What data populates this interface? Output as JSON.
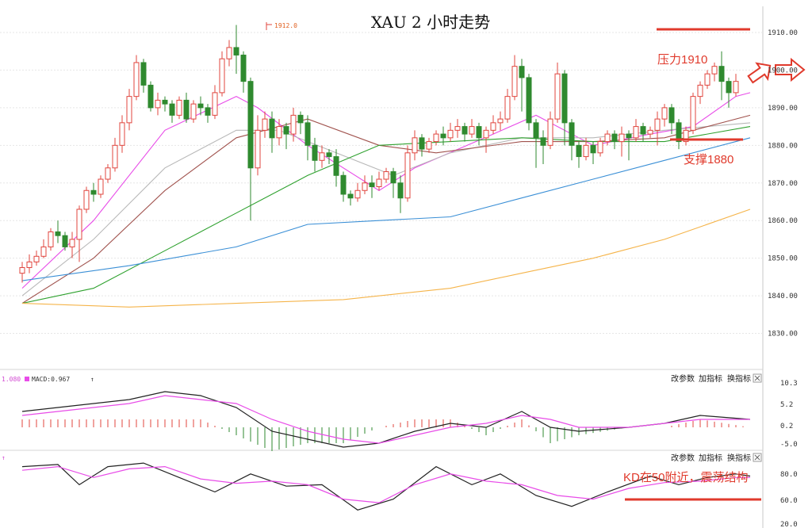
{
  "title": "XAU 2 小时走势",
  "peak_label": "1912.0",
  "annotations": {
    "resistance": "压力1910",
    "support": "支撑1880",
    "kd_note": "KD在50附近，震荡结构"
  },
  "macd_panel": {
    "label_left": "1.080",
    "label_macd": "MACD:0.967",
    "buttons": [
      "改参数",
      "加指标",
      "换指标"
    ],
    "ticks": [
      "10.3",
      "5.2",
      "0.2",
      "-5.0"
    ]
  },
  "kd_panel": {
    "buttons": [
      "改参数",
      "加指标",
      "换指标"
    ],
    "ticks": [
      "80.0",
      "60.0",
      "20.0"
    ]
  },
  "colors": {
    "up": "#e0453e",
    "down": "#2f8a2f",
    "ma5": "#222222",
    "ma10": "#e84ce8",
    "ma20": "#b8b8b8",
    "ma30": "#a0524d",
    "ma60": "#2ea12e",
    "ma120": "#3a8fd6",
    "ma250": "#f5b44a",
    "annotation": "#e03a2c"
  },
  "chart_data": {
    "type": "candlestick",
    "timeframe": "2H",
    "symbol": "XAU",
    "y_ticks": [
      1910,
      1900,
      1890,
      1880,
      1870,
      1860,
      1850,
      1840,
      1830
    ],
    "ylim": [
      1820,
      1914
    ],
    "resistance_level": 1910,
    "support_level": 1880,
    "candles": [
      [
        1846,
        1847.5,
        1843.5,
        1849
      ],
      [
        1847.5,
        1849,
        1846,
        1851
      ],
      [
        1849,
        1850.5,
        1848,
        1852
      ],
      [
        1850.5,
        1853,
        1850,
        1855
      ],
      [
        1853,
        1857,
        1852,
        1858
      ],
      [
        1857,
        1856,
        1854,
        1860
      ],
      [
        1856,
        1853,
        1852,
        1857
      ],
      [
        1853,
        1855,
        1850,
        1857
      ],
      [
        1855,
        1863,
        1849,
        1864
      ],
      [
        1863,
        1868,
        1862,
        1869
      ],
      [
        1868,
        1867,
        1865,
        1870
      ],
      [
        1867,
        1871,
        1866,
        1872
      ],
      [
        1871,
        1874,
        1870,
        1875
      ],
      [
        1874,
        1880,
        1873,
        1882
      ],
      [
        1880,
        1886,
        1878,
        1888
      ],
      [
        1886,
        1893,
        1884,
        1895
      ],
      [
        1893,
        1902,
        1892,
        1904
      ],
      [
        1902,
        1896,
        1894,
        1903
      ],
      [
        1896,
        1890,
        1889,
        1897
      ],
      [
        1890,
        1892,
        1888,
        1894
      ],
      [
        1892,
        1891,
        1889,
        1893
      ],
      [
        1891,
        1888,
        1886,
        1892
      ],
      [
        1888,
        1892,
        1887,
        1893
      ],
      [
        1892,
        1887,
        1886,
        1894
      ],
      [
        1887,
        1891,
        1886,
        1892
      ],
      [
        1891,
        1890,
        1888,
        1893
      ],
      [
        1890,
        1888,
        1886,
        1891
      ],
      [
        1888,
        1894,
        1887,
        1896
      ],
      [
        1894,
        1903,
        1893,
        1905
      ],
      [
        1903,
        1906,
        1901,
        1908
      ],
      [
        1906,
        1904,
        1899,
        1912
      ],
      [
        1904,
        1897,
        1894,
        1905
      ],
      [
        1897,
        1874,
        1860,
        1898
      ],
      [
        1874,
        1884,
        1872,
        1888
      ],
      [
        1884,
        1887,
        1882,
        1889
      ],
      [
        1887,
        1882,
        1878,
        1889
      ],
      [
        1882,
        1885,
        1880,
        1887
      ],
      [
        1885,
        1883,
        1879,
        1886
      ],
      [
        1883,
        1888,
        1881,
        1890
      ],
      [
        1888,
        1886,
        1883,
        1889
      ],
      [
        1886,
        1880,
        1876,
        1888
      ],
      [
        1880,
        1876,
        1873,
        1882
      ],
      [
        1876,
        1878,
        1874,
        1880
      ],
      [
        1878,
        1877,
        1875,
        1879
      ],
      [
        1877,
        1872,
        1869,
        1879
      ],
      [
        1872,
        1867,
        1865,
        1873
      ],
      [
        1867,
        1866,
        1864,
        1868
      ],
      [
        1866,
        1868,
        1865,
        1870
      ],
      [
        1868,
        1870,
        1867,
        1872
      ],
      [
        1870,
        1869,
        1866,
        1872
      ],
      [
        1869,
        1871,
        1868,
        1873
      ],
      [
        1871,
        1873,
        1870,
        1874
      ],
      [
        1873,
        1870,
        1866,
        1874
      ],
      [
        1870,
        1866,
        1862,
        1872
      ],
      [
        1866,
        1878,
        1865,
        1880
      ],
      [
        1878,
        1882,
        1876,
        1884
      ],
      [
        1882,
        1879,
        1877,
        1883
      ],
      [
        1879,
        1881,
        1878,
        1882
      ],
      [
        1881,
        1883,
        1880,
        1884
      ],
      [
        1883,
        1882,
        1880,
        1885
      ],
      [
        1882,
        1884,
        1881,
        1886
      ],
      [
        1884,
        1885,
        1882,
        1887
      ],
      [
        1885,
        1883,
        1881,
        1886
      ],
      [
        1883,
        1885,
        1882,
        1887
      ],
      [
        1885,
        1882,
        1880,
        1886
      ],
      [
        1882,
        1884,
        1878,
        1885
      ],
      [
        1884,
        1886,
        1883,
        1888
      ],
      [
        1886,
        1887,
        1884,
        1889
      ],
      [
        1887,
        1893,
        1886,
        1895
      ],
      [
        1893,
        1901,
        1892,
        1904
      ],
      [
        1901,
        1898,
        1889,
        1903
      ],
      [
        1898,
        1886,
        1884,
        1899
      ],
      [
        1886,
        1882,
        1874,
        1887
      ],
      [
        1882,
        1880,
        1875,
        1884
      ],
      [
        1880,
        1887,
        1879,
        1889
      ],
      [
        1887,
        1899,
        1886,
        1902
      ],
      [
        1899,
        1886,
        1880,
        1900
      ],
      [
        1886,
        1880,
        1876,
        1887
      ],
      [
        1880,
        1877,
        1874,
        1881
      ],
      [
        1877,
        1880,
        1876,
        1882
      ],
      [
        1880,
        1878,
        1875,
        1881
      ],
      [
        1878,
        1881,
        1877,
        1882
      ],
      [
        1881,
        1883,
        1880,
        1884
      ],
      [
        1883,
        1881,
        1879,
        1884
      ],
      [
        1881,
        1883,
        1877,
        1885
      ],
      [
        1883,
        1882,
        1876,
        1884
      ],
      [
        1882,
        1885,
        1881,
        1887
      ],
      [
        1885,
        1883,
        1881,
        1886
      ],
      [
        1883,
        1884,
        1882,
        1885
      ],
      [
        1884,
        1887,
        1880,
        1889
      ],
      [
        1887,
        1890,
        1885,
        1891
      ],
      [
        1890,
        1886,
        1883,
        1891
      ],
      [
        1886,
        1881,
        1879,
        1887
      ],
      [
        1881,
        1884,
        1880,
        1885
      ],
      [
        1884,
        1893,
        1883,
        1894
      ],
      [
        1893,
        1896,
        1891,
        1897
      ],
      [
        1896,
        1899,
        1895,
        1900
      ],
      [
        1899,
        1901,
        1897,
        1902
      ],
      [
        1901,
        1897,
        1892,
        1905
      ],
      [
        1897,
        1894,
        1890,
        1898
      ],
      [
        1894,
        1897,
        1893,
        1899
      ]
    ],
    "moving_averages": [
      {
        "key": "ma10",
        "points": [
          [
            0,
            1842
          ],
          [
            10,
            1860
          ],
          [
            20,
            1884
          ],
          [
            30,
            1893
          ],
          [
            33,
            1890
          ],
          [
            40,
            1880
          ],
          [
            50,
            1868
          ],
          [
            55,
            1874
          ],
          [
            66,
            1883
          ],
          [
            72,
            1888
          ],
          [
            80,
            1880
          ],
          [
            88,
            1883
          ],
          [
            94,
            1885
          ],
          [
            100,
            1893
          ],
          [
            102,
            1894
          ]
        ]
      },
      {
        "key": "ma20",
        "points": [
          [
            0,
            1840
          ],
          [
            10,
            1855
          ],
          [
            20,
            1874
          ],
          [
            30,
            1884
          ],
          [
            36,
            1884
          ],
          [
            44,
            1878
          ],
          [
            52,
            1872
          ],
          [
            60,
            1878
          ],
          [
            70,
            1882
          ],
          [
            80,
            1882
          ],
          [
            90,
            1884
          ],
          [
            102,
            1886
          ]
        ]
      },
      {
        "key": "ma30",
        "points": [
          [
            0,
            1838
          ],
          [
            10,
            1850
          ],
          [
            20,
            1868
          ],
          [
            30,
            1882
          ],
          [
            40,
            1887
          ],
          [
            50,
            1880
          ],
          [
            58,
            1878
          ],
          [
            70,
            1881
          ],
          [
            80,
            1881
          ],
          [
            90,
            1882
          ],
          [
            102,
            1888
          ]
        ]
      },
      {
        "key": "ma60",
        "points": [
          [
            0,
            1838
          ],
          [
            10,
            1842
          ],
          [
            20,
            1852
          ],
          [
            30,
            1862
          ],
          [
            40,
            1872
          ],
          [
            50,
            1880
          ],
          [
            60,
            1881
          ],
          [
            70,
            1882
          ],
          [
            80,
            1881
          ],
          [
            90,
            1881
          ],
          [
            102,
            1885
          ]
        ]
      },
      {
        "key": "ma120",
        "points": [
          [
            0,
            1844
          ],
          [
            15,
            1848
          ],
          [
            30,
            1853
          ],
          [
            40,
            1859
          ],
          [
            50,
            1860
          ],
          [
            60,
            1861
          ],
          [
            70,
            1866
          ],
          [
            80,
            1871
          ],
          [
            90,
            1876
          ],
          [
            102,
            1882
          ]
        ]
      },
      {
        "key": "ma250",
        "points": [
          [
            0,
            1838
          ],
          [
            15,
            1837
          ],
          [
            30,
            1838
          ],
          [
            45,
            1839
          ],
          [
            60,
            1842
          ],
          [
            70,
            1846
          ],
          [
            80,
            1850
          ],
          [
            90,
            1855
          ],
          [
            102,
            1863
          ]
        ]
      }
    ],
    "macd": {
      "dif": [
        [
          0,
          4
        ],
        [
          5,
          5
        ],
        [
          10,
          6
        ],
        [
          15,
          7
        ],
        [
          20,
          9
        ],
        [
          25,
          8
        ],
        [
          30,
          5
        ],
        [
          35,
          -1
        ],
        [
          40,
          -3
        ],
        [
          45,
          -5
        ],
        [
          50,
          -4
        ],
        [
          55,
          -1
        ],
        [
          60,
          1
        ],
        [
          65,
          0
        ],
        [
          70,
          4
        ],
        [
          74,
          0
        ],
        [
          78,
          -1
        ],
        [
          85,
          0
        ],
        [
          90,
          1
        ],
        [
          95,
          3
        ],
        [
          102,
          2
        ]
      ],
      "dea": [
        [
          0,
          3
        ],
        [
          5,
          4
        ],
        [
          10,
          5
        ],
        [
          15,
          6
        ],
        [
          20,
          8
        ],
        [
          25,
          7
        ],
        [
          30,
          6
        ],
        [
          35,
          2
        ],
        [
          40,
          -1
        ],
        [
          45,
          -3
        ],
        [
          50,
          -4
        ],
        [
          55,
          -2
        ],
        [
          60,
          0
        ],
        [
          65,
          1
        ],
        [
          70,
          3
        ],
        [
          74,
          2
        ],
        [
          78,
          0
        ],
        [
          85,
          0
        ],
        [
          90,
          1
        ],
        [
          95,
          2
        ],
        [
          102,
          2
        ]
      ]
    },
    "kd": {
      "k": [
        [
          0,
          85
        ],
        [
          5,
          88
        ],
        [
          8,
          60
        ],
        [
          12,
          85
        ],
        [
          17,
          90
        ],
        [
          22,
          70
        ],
        [
          27,
          50
        ],
        [
          32,
          75
        ],
        [
          37,
          58
        ],
        [
          42,
          60
        ],
        [
          47,
          25
        ],
        [
          52,
          40
        ],
        [
          58,
          85
        ],
        [
          63,
          60
        ],
        [
          67,
          75
        ],
        [
          72,
          45
        ],
        [
          77,
          30
        ],
        [
          82,
          50
        ],
        [
          88,
          72
        ],
        [
          92,
          60
        ],
        [
          96,
          70
        ],
        [
          100,
          75
        ],
        [
          102,
          72
        ]
      ],
      "d": [
        [
          0,
          80
        ],
        [
          5,
          85
        ],
        [
          10,
          70
        ],
        [
          15,
          82
        ],
        [
          20,
          85
        ],
        [
          25,
          68
        ],
        [
          30,
          62
        ],
        [
          35,
          65
        ],
        [
          40,
          60
        ],
        [
          45,
          40
        ],
        [
          50,
          35
        ],
        [
          55,
          60
        ],
        [
          60,
          75
        ],
        [
          65,
          65
        ],
        [
          70,
          60
        ],
        [
          75,
          45
        ],
        [
          80,
          40
        ],
        [
          85,
          55
        ],
        [
          90,
          63
        ],
        [
          95,
          65
        ],
        [
          100,
          70
        ],
        [
          102,
          70
        ]
      ]
    }
  }
}
